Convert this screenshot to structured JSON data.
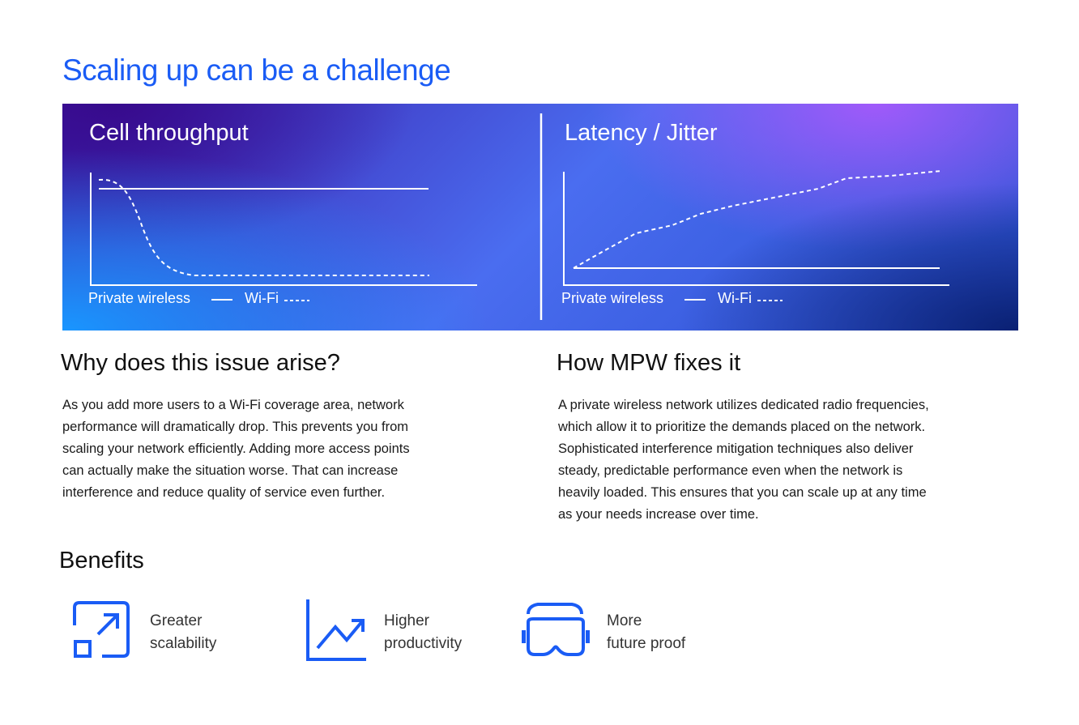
{
  "title": "Scaling up can be a challenge",
  "banner": {
    "left_chart": {
      "title": "Cell throughput",
      "legend_solid": "Private wireless",
      "legend_dashed": "Wi-Fi"
    },
    "right_chart": {
      "title": "Latency / Jitter",
      "legend_solid": "Private wireless",
      "legend_dashed": "Wi-Fi"
    }
  },
  "why": {
    "heading": "Why does this issue arise?",
    "lines": [
      "As you add more users to a Wi-Fi coverage area, network",
      "performance will dramatically drop. This prevents you from",
      "scaling your network efficiently. Adding more access points",
      "can actually make the situation worse. That can increase",
      "interference and reduce quality of service even further."
    ]
  },
  "how": {
    "heading": "How MPW fixes it",
    "lines": [
      "A private wireless network utilizes dedicated radio frequencies,",
      "which allow it to prioritize the demands placed on the network.",
      "Sophisticated interference mitigation techniques also deliver",
      "steady, predictable performance even when the network is",
      "heavily loaded. This ensures that you can scale up at any time",
      "as your needs increase over time."
    ]
  },
  "benefits": {
    "heading": "Benefits",
    "items": [
      {
        "icon": "scale-up-icon",
        "line1": "Greater",
        "line2": "scalability"
      },
      {
        "icon": "trend-up-chart-icon",
        "line1": "Higher",
        "line2": "productivity"
      },
      {
        "icon": "vr-headset-icon",
        "line1": "More",
        "line2": "future proof"
      }
    ]
  },
  "colors": {
    "accent": "#1a5cf5",
    "icon": "#1a5cf5"
  }
}
